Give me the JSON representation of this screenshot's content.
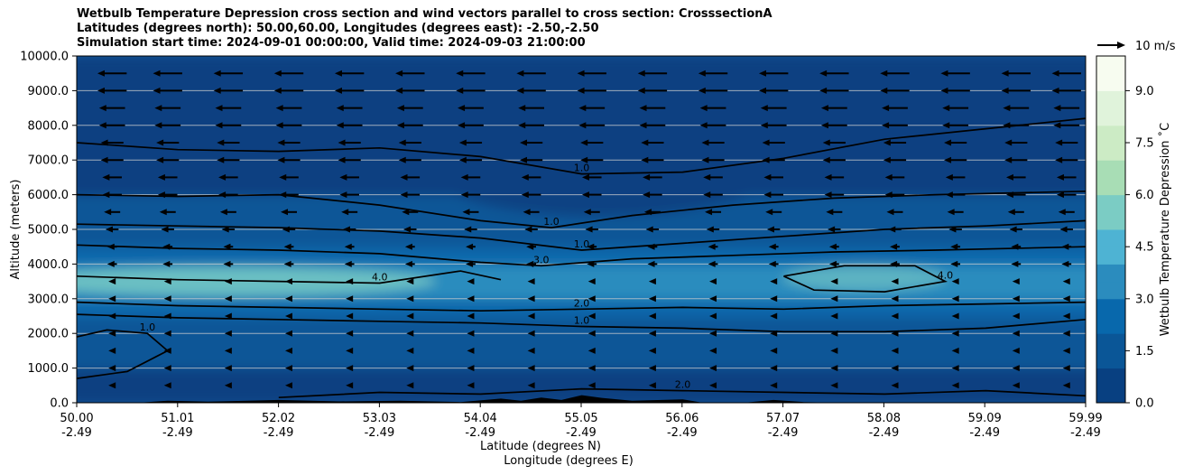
{
  "chart_data": {
    "type": "heatmap",
    "title_lines": [
      "Wetbulb Temperature Depression cross section and wind vectors parallel to cross section: CrosssectionA",
      "Latitudes (degrees north): 50.00,60.00, Longitudes (degrees east): -2.50,-2.50",
      "Simulation start time: 2024-09-01 00:00:00, Valid time: 2024-09-03 21:00:00"
    ],
    "xlabel_lines": [
      "Latitude (degrees N)",
      "Longitude (degrees E)"
    ],
    "ylabel": "Altitude (meters)",
    "x_ticks": [
      {
        "lat": "50.00",
        "lon": "-2.49"
      },
      {
        "lat": "51.01",
        "lon": "-2.49"
      },
      {
        "lat": "52.02",
        "lon": "-2.49"
      },
      {
        "lat": "53.03",
        "lon": "-2.49"
      },
      {
        "lat": "54.04",
        "lon": "-2.49"
      },
      {
        "lat": "55.05",
        "lon": "-2.49"
      },
      {
        "lat": "56.06",
        "lon": "-2.49"
      },
      {
        "lat": "57.07",
        "lon": "-2.49"
      },
      {
        "lat": "58.08",
        "lon": "-2.49"
      },
      {
        "lat": "59.09",
        "lon": "-2.49"
      },
      {
        "lat": "59.99",
        "lon": "-2.49"
      }
    ],
    "xlim": [
      50.0,
      59.99
    ],
    "ylim": [
      0,
      10000
    ],
    "y_ticks": [
      "0.0",
      "1000.0",
      "2000.0",
      "3000.0",
      "4000.0",
      "5000.0",
      "6000.0",
      "7000.0",
      "8000.0",
      "9000.0",
      "10000.0"
    ],
    "colorbar": {
      "label": "Wetbulb Temperature Depression ˚C",
      "ticks": [
        "0.0",
        "1.5",
        "3.0",
        "4.5",
        "6.0",
        "7.5",
        "9.0"
      ],
      "range": [
        0,
        10
      ],
      "levels": 20
    },
    "colors": [
      "#084081",
      "#0a5697",
      "#0868ac",
      "#2b8cbe",
      "#4eb3d3",
      "#7bccc4",
      "#a8ddb5",
      "#ccebc5",
      "#e0f3db",
      "#f7fcf0"
    ],
    "quiver_key": {
      "label": "10 m/s",
      "speed": 10
    },
    "depression_profile": [
      {
        "alt": 0,
        "value": 0.8
      },
      {
        "alt": 500,
        "value": 0.6
      },
      {
        "alt": 1000,
        "value": 1.0
      },
      {
        "alt": 1500,
        "value": 1.3
      },
      {
        "alt": 2000,
        "value": 1.0
      },
      {
        "alt": 2500,
        "value": 1.8
      },
      {
        "alt": 3000,
        "value": 3.2
      },
      {
        "alt": 3500,
        "value": 4.3
      },
      {
        "alt": 4000,
        "value": 3.5
      },
      {
        "alt": 4500,
        "value": 2.2
      },
      {
        "alt": 5000,
        "value": 1.6
      },
      {
        "alt": 6000,
        "value": 1.1
      },
      {
        "alt": 7000,
        "value": 0.8
      },
      {
        "alt": 8000,
        "value": 1.0
      },
      {
        "alt": 9000,
        "value": 0.9
      },
      {
        "alt": 10000,
        "value": 0.6
      }
    ],
    "wind_levels": [
      {
        "alt": 9500,
        "u": -9
      },
      {
        "alt": 9000,
        "u": -9
      },
      {
        "alt": 8500,
        "u": -8
      },
      {
        "alt": 8000,
        "u": -8
      },
      {
        "alt": 7500,
        "u": -7
      },
      {
        "alt": 7000,
        "u": -7
      },
      {
        "alt": 6500,
        "u": -6
      },
      {
        "alt": 6000,
        "u": -6
      },
      {
        "alt": 5500,
        "u": -5
      },
      {
        "alt": 5000,
        "u": -4
      },
      {
        "alt": 4500,
        "u": -3
      },
      {
        "alt": 4000,
        "u": -3
      },
      {
        "alt": 3500,
        "u": -2
      },
      {
        "alt": 3000,
        "u": -2
      },
      {
        "alt": 2500,
        "u": -2
      },
      {
        "alt": 2000,
        "u": -2
      },
      {
        "alt": 1500,
        "u": -2
      },
      {
        "alt": 1000,
        "u": -2
      },
      {
        "alt": 500,
        "u": -1
      }
    ],
    "wind_lats": [
      50.35,
      50.9,
      51.5,
      52.1,
      52.7,
      53.3,
      53.9,
      54.5,
      55.1,
      55.7,
      56.3,
      56.9,
      57.5,
      58.1,
      58.7,
      59.3,
      59.8
    ],
    "contours": [
      {
        "value": "1.0",
        "points": [
          [
            50.0,
            7500
          ],
          [
            51.0,
            7300
          ],
          [
            52.0,
            7250
          ],
          [
            53.0,
            7350
          ],
          [
            54.0,
            7100
          ],
          [
            55.0,
            6600
          ],
          [
            56.0,
            6650
          ],
          [
            57.0,
            7050
          ],
          [
            58.0,
            7600
          ],
          [
            59.0,
            7900
          ],
          [
            59.99,
            8200
          ]
        ]
      },
      {
        "value": "1.0",
        "points": [
          [
            50.0,
            6000
          ],
          [
            51.0,
            5950
          ],
          [
            52.0,
            6000
          ],
          [
            53.0,
            5700
          ],
          [
            54.0,
            5250
          ],
          [
            54.7,
            5050
          ],
          [
            55.5,
            5400
          ],
          [
            56.5,
            5700
          ],
          [
            57.5,
            5900
          ],
          [
            58.5,
            6000
          ],
          [
            59.99,
            6100
          ]
        ]
      },
      {
        "value": "1.0",
        "points": [
          [
            50.0,
            5150
          ],
          [
            51.0,
            5100
          ],
          [
            52.0,
            5050
          ],
          [
            53.0,
            4950
          ],
          [
            54.0,
            4750
          ],
          [
            55.0,
            4400
          ],
          [
            56.0,
            4600
          ],
          [
            57.0,
            4800
          ],
          [
            58.0,
            5000
          ],
          [
            59.0,
            5100
          ],
          [
            59.99,
            5250
          ]
        ]
      },
      {
        "value": "3.0",
        "points": [
          [
            50.0,
            4550
          ],
          [
            51.0,
            4450
          ],
          [
            52.0,
            4400
          ],
          [
            53.0,
            4300
          ],
          [
            54.0,
            4050
          ],
          [
            54.6,
            3950
          ],
          [
            55.5,
            4150
          ],
          [
            56.5,
            4250
          ],
          [
            57.5,
            4350
          ],
          [
            58.5,
            4400
          ],
          [
            59.99,
            4500
          ]
        ]
      },
      {
        "value": "4.0",
        "points": [
          [
            50.0,
            3650
          ],
          [
            51.0,
            3550
          ],
          [
            52.0,
            3500
          ],
          [
            53.0,
            3450
          ],
          [
            53.8,
            3800
          ],
          [
            54.2,
            3550
          ]
        ]
      },
      {
        "value": "4.0",
        "points": [
          [
            57.0,
            3650
          ],
          [
            57.6,
            3950
          ],
          [
            58.3,
            3950
          ],
          [
            58.6,
            3500
          ],
          [
            58.0,
            3200
          ],
          [
            57.3,
            3250
          ],
          [
            57.0,
            3650
          ]
        ]
      },
      {
        "value": "2.0",
        "points": [
          [
            50.0,
            2900
          ],
          [
            51.0,
            2800
          ],
          [
            52.0,
            2750
          ],
          [
            53.0,
            2700
          ],
          [
            54.0,
            2650
          ],
          [
            55.0,
            2700
          ],
          [
            56.0,
            2750
          ],
          [
            57.0,
            2700
          ],
          [
            58.0,
            2800
          ],
          [
            59.0,
            2850
          ],
          [
            59.99,
            2900
          ]
        ]
      },
      {
        "value": "1.0",
        "points": [
          [
            50.0,
            2550
          ],
          [
            51.0,
            2450
          ],
          [
            52.0,
            2400
          ],
          [
            53.0,
            2350
          ],
          [
            54.0,
            2300
          ],
          [
            55.0,
            2200
          ],
          [
            56.0,
            2150
          ],
          [
            57.0,
            2050
          ],
          [
            58.0,
            2050
          ],
          [
            59.0,
            2150
          ],
          [
            59.99,
            2400
          ]
        ]
      },
      {
        "value": "1.0",
        "points": [
          [
            50.0,
            700
          ],
          [
            50.5,
            900
          ],
          [
            50.9,
            1500
          ],
          [
            50.7,
            2000
          ],
          [
            50.3,
            2100
          ],
          [
            50.0,
            1900
          ]
        ]
      },
      {
        "value": "2.0",
        "points": [
          [
            52.0,
            150
          ],
          [
            53.0,
            300
          ],
          [
            54.0,
            250
          ],
          [
            55.0,
            400
          ],
          [
            56.0,
            350
          ],
          [
            57.0,
            300
          ],
          [
            58.0,
            250
          ],
          [
            59.0,
            350
          ],
          [
            59.99,
            200
          ]
        ]
      }
    ]
  }
}
